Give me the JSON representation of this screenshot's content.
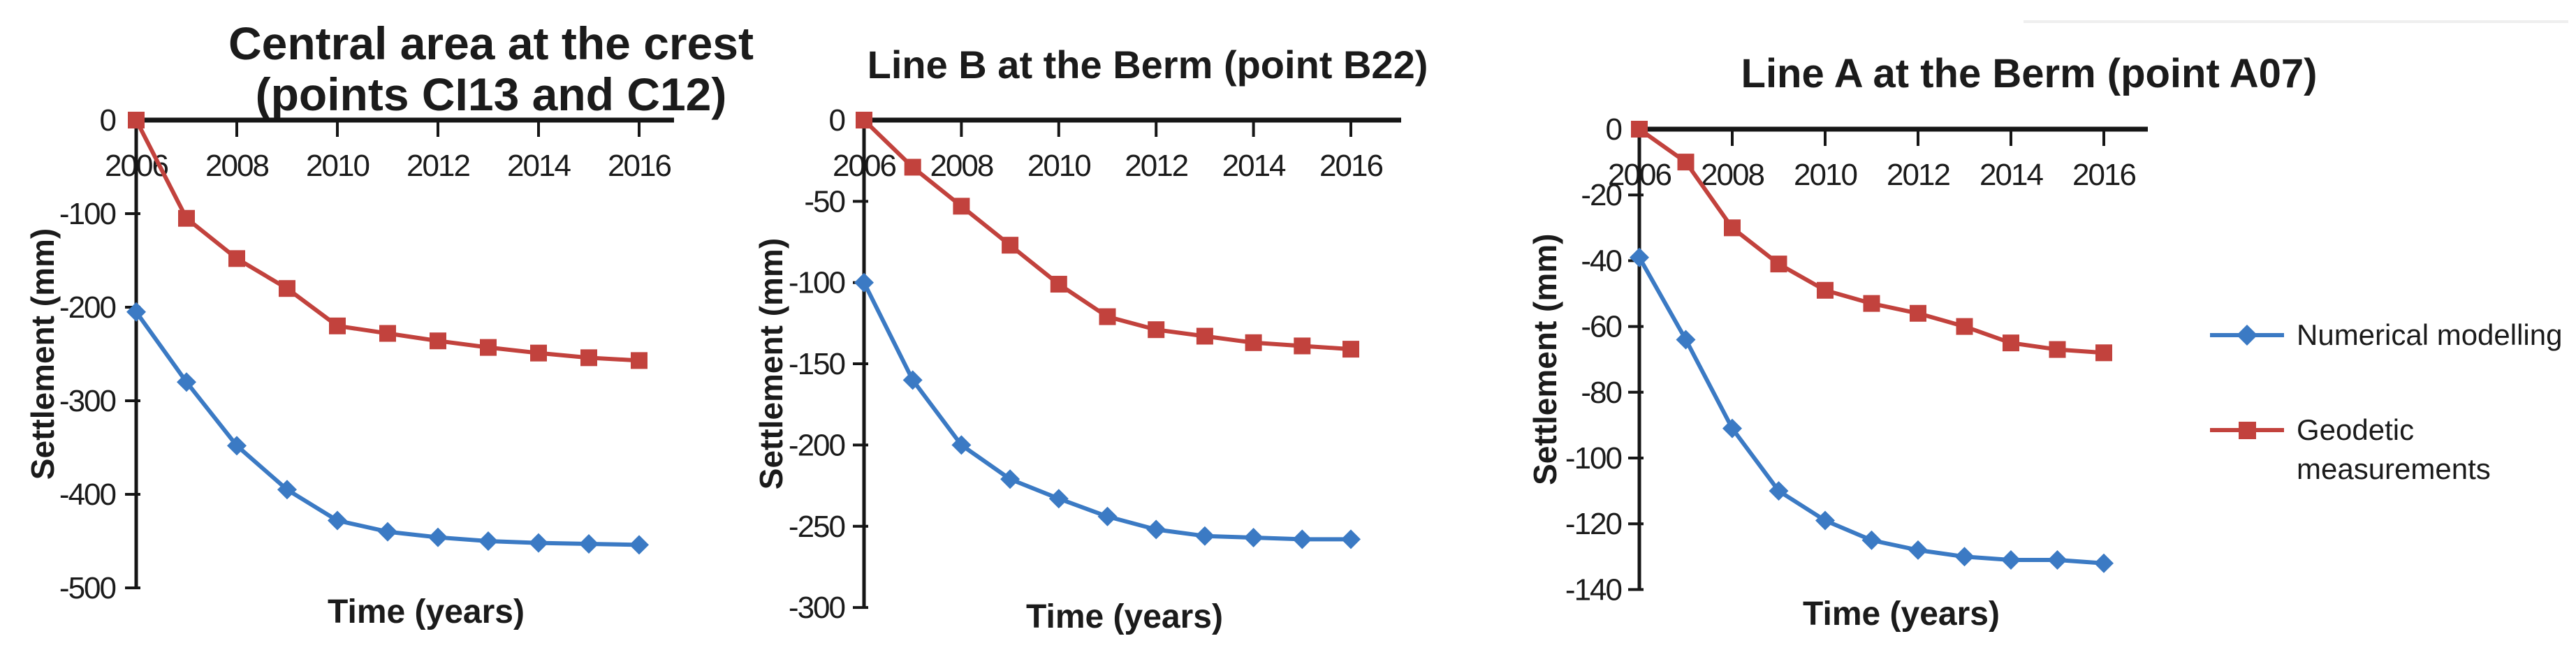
{
  "figure": {
    "background_color": "#ffffff",
    "text_color": "#1b1b1b",
    "axis_color": "#161616"
  },
  "legend": {
    "items": [
      {
        "label_lines": [
          "Numerical modelling"
        ],
        "marker": "diamond",
        "color": "#3B7AC4"
      },
      {
        "label_lines": [
          "Geodetic",
          "measurements"
        ],
        "marker": "square",
        "color": "#C2423D"
      }
    ]
  },
  "chart_data": [
    {
      "type": "line",
      "title_lines": [
        "Central area at the crest",
        "(points CI13 and C12)"
      ],
      "xlabel": "Time (years)",
      "ylabel": "Settlement (mm)",
      "x": [
        2006,
        2007,
        2008,
        2009,
        2010,
        2011,
        2012,
        2013,
        2014,
        2015,
        2016
      ],
      "x_tick_labels": [
        "2006",
        "2008",
        "2010",
        "2012",
        "2014",
        "2016"
      ],
      "xlim": [
        2006,
        2016
      ],
      "ylim": [
        -500,
        0
      ],
      "ytick_step": 100,
      "y_tick_labels": [
        "0",
        "-100",
        "-200",
        "-300",
        "-400",
        "-500"
      ],
      "grid": false,
      "legend_position": "none",
      "series": [
        {
          "name": "Numerical modelling",
          "marker": "diamond",
          "color": "#3B7AC4",
          "values": [
            -205,
            -280,
            -348,
            -395,
            -428,
            -440,
            -446,
            -450,
            -452,
            -453,
            -454
          ]
        },
        {
          "name": "Geodetic measurements",
          "marker": "square",
          "color": "#C2423D",
          "values": [
            0,
            -105,
            -148,
            -180,
            -220,
            -228,
            -236,
            -243,
            -249,
            -254,
            -257
          ]
        }
      ]
    },
    {
      "type": "line",
      "title_lines": [
        "Line B at the Berm (point B22)"
      ],
      "xlabel": "Time (years)",
      "ylabel": "Settlement (mm)",
      "x": [
        2006,
        2007,
        2008,
        2009,
        2010,
        2011,
        2012,
        2013,
        2014,
        2015,
        2016
      ],
      "x_tick_labels": [
        "2006",
        "2008",
        "2010",
        "2012",
        "2014",
        "2016"
      ],
      "xlim": [
        2006,
        2016
      ],
      "ylim": [
        -300,
        0
      ],
      "ytick_step": 50,
      "y_tick_labels": [
        "0",
        "-50",
        "-100",
        "-150",
        "-200",
        "-250",
        "-300"
      ],
      "grid": false,
      "legend_position": "none",
      "series": [
        {
          "name": "Numerical modelling",
          "marker": "diamond",
          "color": "#3B7AC4",
          "values": [
            -100,
            -160,
            -200,
            -221,
            -233,
            -244,
            -252,
            -256,
            -257,
            -258,
            -258
          ]
        },
        {
          "name": "Geodetic measurements",
          "marker": "square",
          "color": "#C2423D",
          "values": [
            0,
            -29,
            -53,
            -77,
            -101,
            -121,
            -129,
            -133,
            -137,
            -139,
            -141
          ]
        }
      ]
    },
    {
      "type": "line",
      "title_lines": [
        "Line A at the Berm (point A07)"
      ],
      "xlabel": "Time (years)",
      "ylabel": "Settlement (mm)",
      "x": [
        2006,
        2007,
        2008,
        2009,
        2010,
        2011,
        2012,
        2013,
        2014,
        2015,
        2016
      ],
      "x_tick_labels": [
        "2006",
        "2008",
        "2010",
        "2012",
        "2014",
        "2016"
      ],
      "xlim": [
        2006,
        2016
      ],
      "ylim": [
        -140,
        0
      ],
      "ytick_step": 20,
      "y_tick_labels": [
        "0",
        "-20",
        "-40",
        "-60",
        "-80",
        "-100",
        "-120",
        "-140"
      ],
      "grid": false,
      "legend_position": "right-of-figure",
      "series": [
        {
          "name": "Numerical modelling",
          "marker": "diamond",
          "color": "#3B7AC4",
          "values": [
            -39,
            -64,
            -91,
            -110,
            -119,
            -125,
            -128,
            -130,
            -131,
            -131,
            -132
          ]
        },
        {
          "name": "Geodetic measurements",
          "marker": "square",
          "color": "#C2423D",
          "values": [
            0,
            -10,
            -30,
            -41,
            -49,
            -53,
            -56,
            -60,
            -65,
            -67,
            -68
          ]
        }
      ]
    }
  ]
}
